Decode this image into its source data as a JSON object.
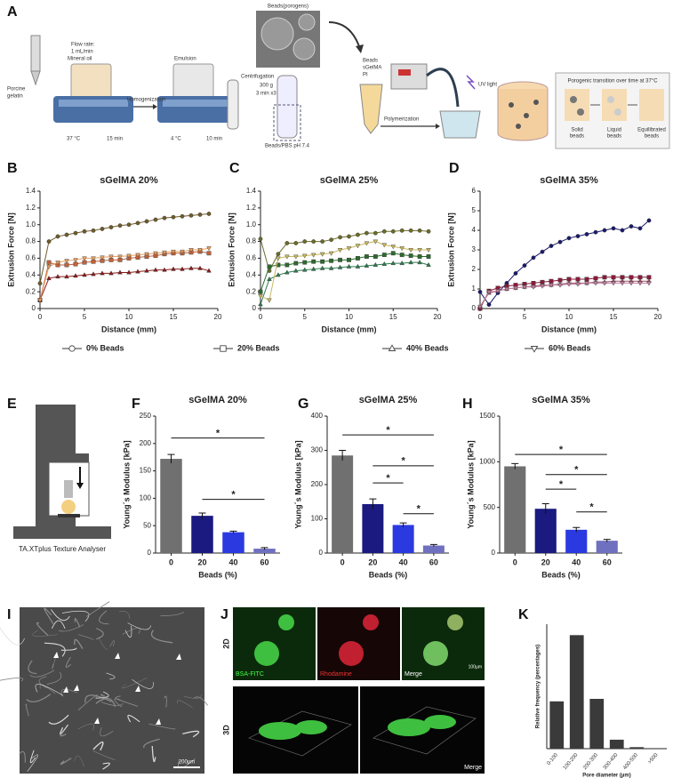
{
  "panel_letters": [
    "A",
    "B",
    "C",
    "D",
    "E",
    "F",
    "G",
    "H",
    "I",
    "J",
    "K"
  ],
  "schematic_a": {
    "gelatin": [
      "Porcine",
      "gelatin"
    ],
    "flow": [
      "Flow rate:",
      "1 mL/min"
    ],
    "oil": "Mineral oil",
    "homogenization": "Homogenization",
    "emulsion": "Emulsion",
    "temp1": "37 °C",
    "time1": "15 min",
    "temp2": "4 °C",
    "time2": "10 min",
    "porogens": "Beads(porogens)",
    "centrifugation": [
      "Centrifugation",
      "300 g",
      "3 min x3"
    ],
    "pbs": "Beads/PBS pH 7.4",
    "mix": [
      "Beads",
      "sGelMA",
      "PI"
    ],
    "uv": "UV light",
    "polymerization": "Polymerization",
    "transition": "Porogenic transition over time at 37°C",
    "stages": [
      [
        "Solid",
        "beads"
      ],
      [
        "Liquid",
        "beads"
      ],
      [
        "Equilibrated",
        "beads"
      ]
    ]
  },
  "panel_e": {
    "caption": "TA.XTplus Texture Analyser"
  },
  "panel_i": {
    "scale_bar": "200µm"
  },
  "panel_j": {
    "rows": [
      "2D",
      "3D"
    ],
    "channels": [
      "BSA-FITC",
      "Rhodamine",
      "Merge"
    ],
    "scale_bar": "100µm",
    "merge_3d": "Merge"
  },
  "chart_data": [
    {
      "type": "line",
      "title": "sGelMA 20%",
      "x_label": "Distance (mm)",
      "y_label": "Extrusion Force [N]",
      "legend": "bottom",
      "x": [
        0,
        1,
        2,
        3,
        4,
        5,
        6,
        7,
        8,
        9,
        10,
        11,
        12,
        13,
        14,
        15,
        16,
        17,
        18,
        19
      ],
      "xlim": [
        0,
        20
      ],
      "xticks": [
        0,
        5,
        10,
        15,
        20
      ],
      "ylim": [
        0,
        1.4
      ],
      "yticks": [
        0,
        0.2,
        0.4,
        0.6,
        0.8,
        {
          "value": 1,
          "label": "1.0"
        },
        1.2,
        1.4
      ],
      "series": [
        {
          "name": "0% Beads",
          "color": "#6e5b2b",
          "marker": "circle",
          "values": [
            0.3,
            0.8,
            0.86,
            0.88,
            0.9,
            0.92,
            0.93,
            0.95,
            0.97,
            0.99,
            1.0,
            1.02,
            1.04,
            1.06,
            1.08,
            1.09,
            1.1,
            1.11,
            1.12,
            1.13
          ]
        },
        {
          "name": "20% Beads",
          "color": "#c0623a",
          "marker": "square",
          "values": [
            0.1,
            0.55,
            0.52,
            0.52,
            0.53,
            0.55,
            0.56,
            0.57,
            0.58,
            0.58,
            0.6,
            0.61,
            0.62,
            0.63,
            0.65,
            0.66,
            0.66,
            0.67,
            0.68,
            0.66
          ]
        },
        {
          "name": "40% Beads",
          "color": "#8b1a1a",
          "marker": "triangle",
          "values": [
            0.1,
            0.36,
            0.38,
            0.38,
            0.39,
            0.4,
            0.41,
            0.42,
            0.42,
            0.43,
            0.43,
            0.44,
            0.45,
            0.46,
            0.46,
            0.47,
            0.47,
            0.48,
            0.48,
            0.45
          ]
        },
        {
          "name": "60% Beads",
          "color": "#e8a060",
          "marker": "triangle-down",
          "values": [
            0.1,
            0.5,
            0.55,
            0.57,
            0.58,
            0.6,
            0.6,
            0.61,
            0.62,
            0.62,
            0.63,
            0.64,
            0.65,
            0.66,
            0.67,
            0.68,
            0.68,
            0.7,
            0.7,
            0.72
          ]
        }
      ]
    },
    {
      "type": "line",
      "title": "sGelMA 25%",
      "x_label": "Distance (mm)",
      "y_label": "Extrusion Force [N]",
      "x": [
        0,
        1,
        2,
        3,
        4,
        5,
        6,
        7,
        8,
        9,
        10,
        11,
        12,
        13,
        14,
        15,
        16,
        17,
        18,
        19
      ],
      "xlim": [
        0,
        20
      ],
      "xticks": [
        0,
        5,
        10,
        15,
        20
      ],
      "ylim": [
        0,
        1.4
      ],
      "yticks": [
        0,
        0.2,
        0.4,
        0.6,
        0.8,
        {
          "value": 1,
          "label": "1.0"
        },
        1.2,
        1.4
      ],
      "series": [
        {
          "color": "#6b6b2a",
          "marker": "circle",
          "values": [
            0.83,
            0.45,
            0.65,
            0.78,
            0.78,
            0.8,
            0.8,
            0.8,
            0.82,
            0.85,
            0.86,
            0.88,
            0.9,
            0.9,
            0.92,
            0.92,
            0.93,
            0.93,
            0.93,
            0.92
          ]
        },
        {
          "color": "#2d6a2d",
          "marker": "square",
          "values": [
            0.2,
            0.5,
            0.52,
            0.52,
            0.54,
            0.55,
            0.56,
            0.56,
            0.57,
            0.58,
            0.58,
            0.6,
            0.62,
            0.62,
            0.64,
            0.66,
            0.64,
            0.63,
            0.62,
            0.62
          ]
        },
        {
          "color": "#2f7a4f",
          "marker": "triangle",
          "values": [
            0.05,
            0.35,
            0.4,
            0.43,
            0.45,
            0.46,
            0.47,
            0.48,
            0.48,
            0.49,
            0.5,
            0.5,
            0.51,
            0.52,
            0.53,
            0.54,
            0.54,
            0.55,
            0.55,
            0.52
          ]
        },
        {
          "color": "#c8b860",
          "marker": "triangle-down",
          "values": [
            0.15,
            0.1,
            0.6,
            0.62,
            0.62,
            0.63,
            0.64,
            0.65,
            0.66,
            0.7,
            0.72,
            0.75,
            0.78,
            0.8,
            0.76,
            0.74,
            0.72,
            0.7,
            0.7,
            0.7
          ]
        }
      ]
    },
    {
      "type": "line",
      "title": "sGelMA 35%",
      "x_label": "Distance (mm)",
      "y_label": "Extrusion Force [N]",
      "x": [
        0,
        1,
        2,
        3,
        4,
        5,
        6,
        7,
        8,
        9,
        10,
        11,
        12,
        13,
        14,
        15,
        16,
        17,
        18,
        19
      ],
      "xlim": [
        0,
        20
      ],
      "xticks": [
        0,
        5,
        10,
        15,
        20
      ],
      "ylim": [
        0,
        6
      ],
      "yticks": [
        0,
        1,
        2,
        3,
        4,
        5,
        6
      ],
      "series": [
        {
          "color": "#1a1a6b",
          "marker": "circle",
          "values": [
            0.85,
            0.2,
            0.8,
            1.3,
            1.8,
            2.2,
            2.6,
            2.9,
            3.2,
            3.4,
            3.6,
            3.7,
            3.8,
            3.9,
            4.0,
            4.1,
            4.0,
            4.2,
            4.1,
            4.5
          ]
        },
        {
          "color": "#8b1a3a",
          "marker": "square",
          "values": [
            0.0,
            0.9,
            1.05,
            1.15,
            1.2,
            1.25,
            1.3,
            1.35,
            1.4,
            1.45,
            1.5,
            1.5,
            1.5,
            1.55,
            1.6,
            1.6,
            1.6,
            1.6,
            1.6,
            1.6
          ]
        },
        {
          "color": "#a0506a",
          "marker": "triangle",
          "values": [
            0.1,
            0.8,
            0.9,
            1.0,
            1.05,
            1.1,
            1.15,
            1.2,
            1.2,
            1.25,
            1.3,
            1.3,
            1.3,
            1.35,
            1.35,
            1.4,
            1.4,
            1.4,
            1.4,
            1.4
          ]
        },
        {
          "color": "#c080a0",
          "marker": "triangle-down",
          "values": [
            0.1,
            0.85,
            0.9,
            1.0,
            1.05,
            1.1,
            1.1,
            1.15,
            1.2,
            1.2,
            1.25,
            1.25,
            1.3,
            1.3,
            1.3,
            1.3,
            1.3,
            1.3,
            1.3,
            1.3
          ]
        }
      ]
    },
    {
      "type": "bar",
      "title": "sGelMA 20%",
      "x_label": "Beads (%)",
      "y_label": "Young´s Modulus [kPa]",
      "categories": [
        "0",
        "20",
        "40",
        "60"
      ],
      "values": [
        172,
        68,
        38,
        8
      ],
      "errors": [
        8,
        5,
        2,
        2
      ],
      "colors": [
        "#707070",
        "#1a1a80",
        "#2a3ae0",
        "#7070c0"
      ],
      "ylim": [
        0,
        250
      ],
      "yticks": [
        0,
        50,
        100,
        150,
        200,
        250
      ],
      "brackets": [
        {
          "label": "*",
          "y": 210,
          "span": [
            0,
            3
          ]
        },
        {
          "label": "*",
          "y": 98,
          "span": [
            1,
            3
          ]
        }
      ]
    },
    {
      "type": "bar",
      "title": "sGelMA 25%",
      "x_label": "Beads (%)",
      "y_label": "Young´s Modulus [kPa]",
      "categories": [
        "0",
        "20",
        "40",
        "60"
      ],
      "values": [
        285,
        143,
        82,
        22
      ],
      "errors": [
        15,
        15,
        6,
        3
      ],
      "colors": [
        "#707070",
        "#1a1a80",
        "#2a3ae0",
        "#7070c0"
      ],
      "ylim": [
        0,
        400
      ],
      "yticks": [
        0,
        100,
        200,
        300,
        400
      ],
      "brackets": [
        {
          "label": "*",
          "y": 345,
          "span": [
            0,
            3
          ]
        },
        {
          "label": "*",
          "y": 255,
          "span": [
            1,
            3
          ]
        },
        {
          "label": "*",
          "y": 205,
          "span": [
            1,
            2
          ]
        },
        {
          "label": "*",
          "y": 115,
          "span": [
            2,
            3
          ]
        }
      ]
    },
    {
      "type": "bar",
      "title": "sGelMA 35%",
      "x_label": "Beads (%)",
      "y_label": "Young´s Modulus [kPa]",
      "categories": [
        "0",
        "20",
        "40",
        "60"
      ],
      "values": [
        950,
        485,
        255,
        135
      ],
      "errors": [
        30,
        55,
        25,
        15
      ],
      "colors": [
        "#707070",
        "#1a1a80",
        "#2a3ae0",
        "#7070c0"
      ],
      "ylim": [
        0,
        1500
      ],
      "yticks": [
        0,
        500,
        1000,
        1500
      ],
      "brackets": [
        {
          "label": "*",
          "y": 1080,
          "span": [
            0,
            3
          ]
        },
        {
          "label": "*",
          "y": 860,
          "span": [
            1,
            3
          ]
        },
        {
          "label": "*",
          "y": 700,
          "span": [
            1,
            2
          ]
        },
        {
          "label": "*",
          "y": 450,
          "span": [
            2,
            3
          ]
        }
      ]
    },
    {
      "type": "bar",
      "x_label": "Pore diameter (µm)",
      "y_label": "Relative frequency (percentages)",
      "rotate_labels": true,
      "categories": [
        "0-100",
        "100-200",
        "200-300",
        "300-400",
        "400-500",
        ">500"
      ],
      "values": [
        95,
        228,
        100,
        18,
        3,
        1
      ],
      "colors": [
        "#3a3a3a",
        "#3a3a3a",
        "#3a3a3a",
        "#3a3a3a",
        "#3a3a3a",
        "#3a3a3a"
      ],
      "ylim": [
        0,
        250
      ]
    }
  ]
}
